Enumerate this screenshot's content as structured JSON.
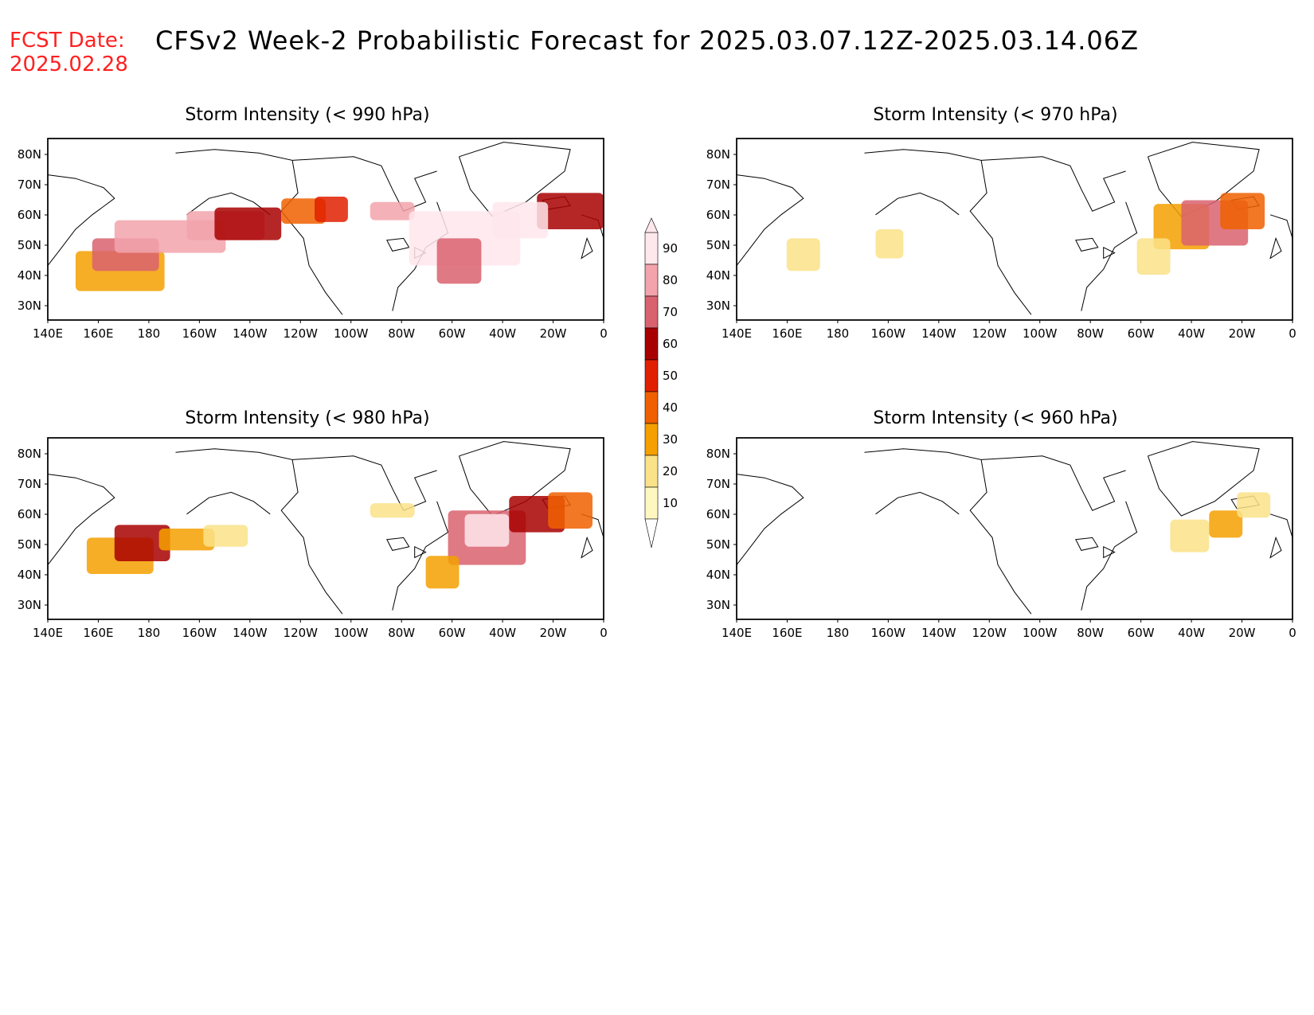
{
  "header": {
    "fcst_label": "FCST Date:",
    "fcst_date": "2025.02.28",
    "title": "CFSv2 Week-2 Probabilistic Forecast for 2025.03.07.12Z-2025.03.14.06Z"
  },
  "axes": {
    "lat_labels": [
      "80N",
      "70N",
      "60N",
      "50N",
      "40N",
      "30N"
    ],
    "lon_labels": [
      "140E",
      "160E",
      "180",
      "160W",
      "140W",
      "120W",
      "100W",
      "80W",
      "60W",
      "40W",
      "20W",
      "0"
    ]
  },
  "panels": [
    {
      "id": "p990",
      "title": "Storm Intensity (< 990 hPa)"
    },
    {
      "id": "p970",
      "title": "Storm Intensity (< 970 hPa)"
    },
    {
      "id": "p980",
      "title": "Storm Intensity (< 980 hPa)"
    },
    {
      "id": "p960",
      "title": "Storm Intensity (< 960 hPa)"
    }
  ],
  "colorbar": {
    "levels": [
      "90",
      "80",
      "70",
      "60",
      "50",
      "40",
      "30",
      "20",
      "10"
    ],
    "colors": [
      "#ffe8ec",
      "#f2a3ac",
      "#d9626f",
      "#a80000",
      "#e02000",
      "#f06000",
      "#f5a000",
      "#fae288",
      "#fff7c0"
    ]
  },
  "colors": {
    "land_outline": "#000000",
    "title_red": "#ff2020"
  }
}
